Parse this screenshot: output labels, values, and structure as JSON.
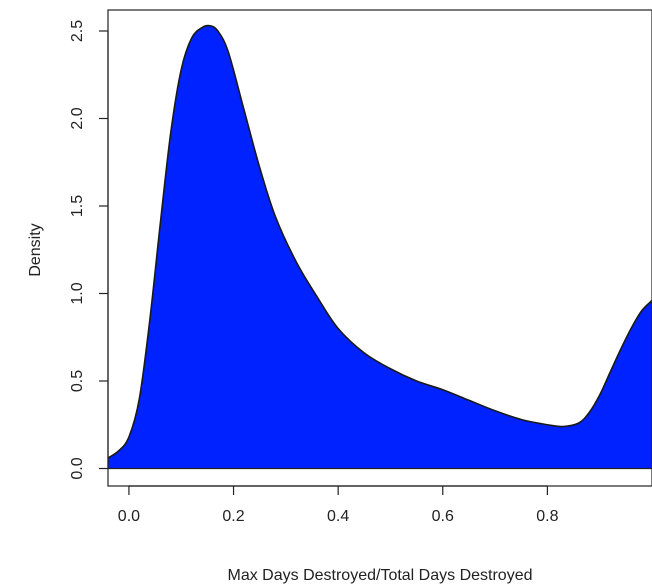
{
  "chart_data": {
    "type": "area",
    "title": "",
    "xlabel": "Max Days Destroyed/Total Days Destroyed",
    "ylabel": "Density",
    "xlim": [
      -0.04,
      1.0
    ],
    "ylim": [
      -0.1,
      2.62
    ],
    "x_ticks": [
      "0.0",
      "0.2",
      "0.4",
      "0.6",
      "0.8"
    ],
    "y_ticks": [
      "0.0",
      "0.5",
      "1.0",
      "1.5",
      "2.0",
      "2.5"
    ],
    "grid": false,
    "legend": "none",
    "fill_color": "#0022ff",
    "line_color": "#1a1a1a",
    "series": [
      {
        "x": [
          -0.04,
          -0.02,
          0.0,
          0.02,
          0.04,
          0.06,
          0.08,
          0.1,
          0.12,
          0.14,
          0.155,
          0.17,
          0.19,
          0.22,
          0.25,
          0.28,
          0.32,
          0.36,
          0.4,
          0.45,
          0.5,
          0.55,
          0.6,
          0.65,
          0.7,
          0.75,
          0.8,
          0.83,
          0.86,
          0.88,
          0.9,
          0.92,
          0.94,
          0.96,
          0.98,
          1.0
        ],
        "y": [
          0.06,
          0.1,
          0.18,
          0.4,
          0.85,
          1.4,
          1.92,
          2.28,
          2.46,
          2.52,
          2.53,
          2.5,
          2.38,
          2.05,
          1.72,
          1.44,
          1.18,
          0.98,
          0.8,
          0.66,
          0.57,
          0.5,
          0.45,
          0.39,
          0.33,
          0.28,
          0.25,
          0.24,
          0.26,
          0.32,
          0.42,
          0.55,
          0.68,
          0.8,
          0.9,
          0.96
        ]
      }
    ]
  }
}
